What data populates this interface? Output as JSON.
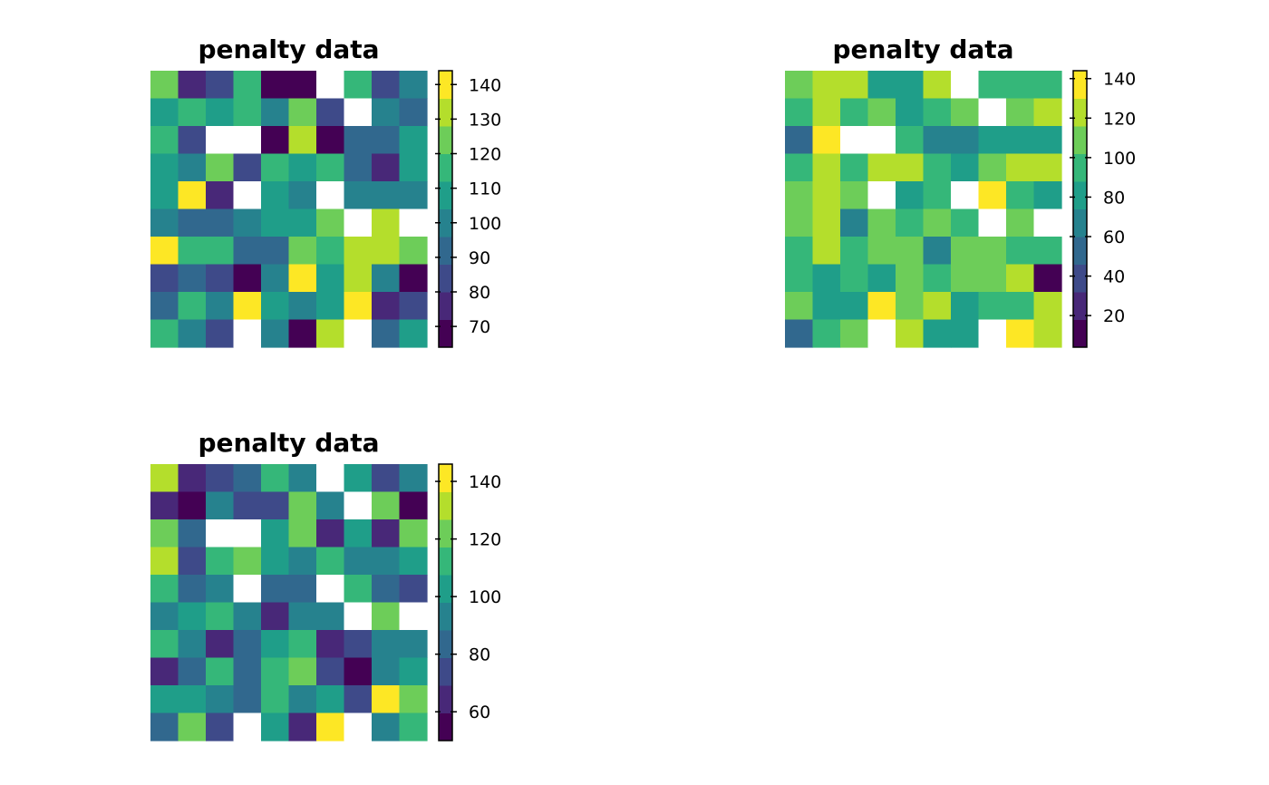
{
  "palette": [
    "#440154",
    "#482878",
    "#3e4a89",
    "#31688e",
    "#26828e",
    "#1f9e89",
    "#35b779",
    "#6dcd59",
    "#b4de2c",
    "#fde725"
  ],
  "na_color": "#ffffff",
  "chart_data": [
    {
      "type": "heatmap",
      "title": "penalty data",
      "zlim": [
        64,
        144
      ],
      "colorbar_ticks": [
        70,
        80,
        90,
        100,
        110,
        120,
        130,
        140
      ],
      "matrix": [
        [
          124,
          72,
          80,
          115,
          70,
          66,
          null,
          113,
          80,
          100
        ],
        [
          110,
          116,
          106,
          116,
          100,
          120,
          85,
          null,
          98,
          89
        ],
        [
          114,
          82,
          null,
          null,
          65,
          134,
          68,
          92,
          95,
          110
        ],
        [
          105,
          96,
          125,
          87,
          113,
          108,
          114,
          94,
          74,
          111
        ],
        [
          110,
          138,
          73,
          null,
          105,
          99,
          null,
          98,
          102,
          100
        ],
        [
          100,
          94,
          91,
          100,
          105,
          110,
          126,
          null,
          133,
          null
        ],
        [
          140,
          117,
          116,
          94,
          92,
          123,
          115,
          128,
          130,
          121
        ],
        [
          82,
          95,
          84,
          68,
          103,
          143,
          110,
          131,
          100,
          64
        ],
        [
          90,
          119,
          100,
          140,
          110,
          101,
          106,
          136,
          76,
          85
        ],
        [
          117,
          96,
          83,
          null,
          96,
          68,
          130,
          null,
          95,
          108
        ]
      ]
    },
    {
      "type": "heatmap",
      "title": "penalty data",
      "zlim": [
        4,
        144
      ],
      "colorbar_ticks": [
        20,
        40,
        60,
        80,
        100,
        120,
        140
      ],
      "matrix": [
        [
          112,
          122,
          124,
          82,
          78,
          118,
          null,
          100,
          88,
          88
        ],
        [
          100,
          125,
          94,
          102,
          82,
          94,
          110,
          null,
          104,
          122
        ],
        [
          54,
          132,
          null,
          null,
          92,
          70,
          72,
          86,
          76,
          86
        ],
        [
          90,
          124,
          96,
          125,
          125,
          100,
          86,
          115,
          126,
          120
        ],
        [
          104,
          124,
          110,
          null,
          80,
          90,
          null,
          134,
          88,
          82
        ],
        [
          104,
          116,
          70,
          110,
          100,
          104,
          100,
          null,
          112,
          null
        ],
        [
          88,
          124,
          90,
          108,
          112,
          66,
          110,
          102,
          100,
          100
        ],
        [
          100,
          86,
          96,
          80,
          112,
          90,
          108,
          102,
          118,
          4
        ],
        [
          110,
          86,
          86,
          144,
          114,
          122,
          78,
          96,
          88,
          120
        ],
        [
          54,
          94,
          110,
          null,
          124,
          82,
          82,
          null,
          134,
          118
        ]
      ]
    },
    {
      "type": "heatmap",
      "title": "penalty data",
      "zlim": [
        50,
        146
      ],
      "colorbar_ticks": [
        60,
        80,
        100,
        120,
        140
      ],
      "matrix": [
        [
          135,
          68,
          70,
          80,
          108,
          92,
          null,
          98,
          78,
          92
        ],
        [
          60,
          56,
          90,
          78,
          78,
          120,
          95,
          null,
          120,
          51
        ],
        [
          125,
          80,
          null,
          null,
          98,
          118,
          68,
          98,
          62,
          118
        ],
        [
          132,
          78,
          110,
          120,
          100,
          94,
          115,
          95,
          95,
          105
        ],
        [
          112,
          82,
          94,
          null,
          82,
          80,
          null,
          112,
          80,
          75
        ],
        [
          90,
          100,
          108,
          92,
          68,
          90,
          90,
          null,
          118,
          null
        ],
        [
          110,
          90,
          65,
          85,
          105,
          110,
          65,
          78,
          92,
          90
        ],
        [
          60,
          80,
          115,
          80,
          110,
          118,
          78,
          52,
          95,
          105
        ],
        [
          98,
          102,
          90,
          80,
          110,
          92,
          105,
          70,
          145,
          120
        ],
        [
          80,
          120,
          70,
          null,
          100,
          62,
          138,
          null,
          92,
          112
        ]
      ]
    }
  ]
}
